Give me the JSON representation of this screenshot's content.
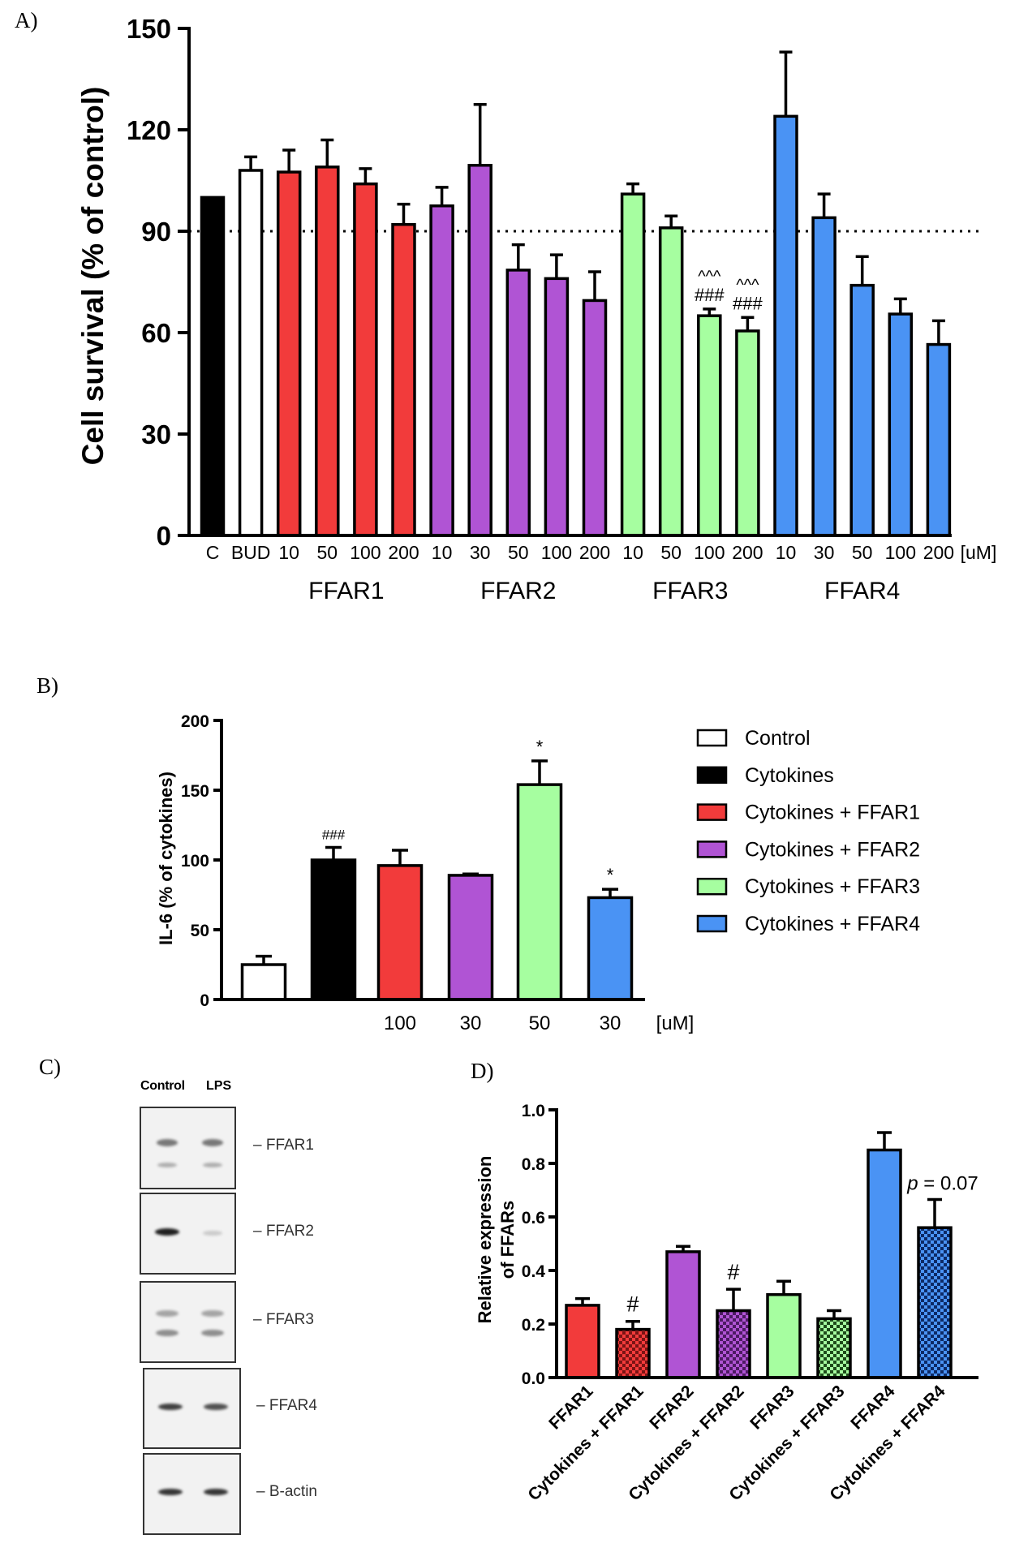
{
  "panels": {
    "a": "A)",
    "b": "B)",
    "c": "C)",
    "d": "D)"
  },
  "colors": {
    "black": "#000000",
    "white": "#ffffff",
    "red": "#f23b3b",
    "purple": "#b054d4",
    "green": "#a6fea0",
    "blue": "#4a93f4",
    "dark_red": "#7a1414",
    "dark_purple": "#4d1b63",
    "dark_green": "#1e4a1a",
    "dark_blue": "#0d2a66"
  },
  "chart_data": [
    {
      "type": "bar",
      "id": "A",
      "title": "",
      "ylabel": "Cell survival (% of control)",
      "xlabel": "",
      "ylim": [
        0,
        150
      ],
      "yticks": [
        0,
        30,
        60,
        90,
        120,
        150
      ],
      "reference_line": 90,
      "unit_label": "[uM]",
      "categories": [
        "C",
        "BUD",
        "10",
        "50",
        "100",
        "200",
        "10",
        "30",
        "50",
        "100",
        "200",
        "10",
        "50",
        "100",
        "200",
        "10",
        "30",
        "50",
        "100",
        "200"
      ],
      "values": [
        100,
        108,
        107.5,
        109,
        104,
        92,
        97.5,
        109.5,
        78.5,
        76,
        69.5,
        101,
        91,
        65,
        60.5,
        124,
        94,
        74,
        65.5,
        56.5
      ],
      "errors": [
        0,
        4,
        6.5,
        8,
        4.5,
        6,
        5.5,
        18,
        7.5,
        7,
        8.5,
        3,
        3.5,
        2,
        4,
        19,
        7,
        8.5,
        4.5,
        7
      ],
      "colors": [
        "black",
        "white",
        "red",
        "red",
        "red",
        "red",
        "purple",
        "purple",
        "purple",
        "purple",
        "purple",
        "green",
        "green",
        "green",
        "green",
        "blue",
        "blue",
        "blue",
        "blue",
        "blue"
      ],
      "groups": [
        {
          "label": "FFAR1",
          "from": 2,
          "to": 5
        },
        {
          "label": "FFAR2",
          "from": 6,
          "to": 10
        },
        {
          "label": "FFAR3",
          "from": 11,
          "to": 14
        },
        {
          "label": "FFAR4",
          "from": 15,
          "to": 19
        }
      ],
      "annotations": [
        {
          "bar": 13,
          "lines": [
            "^^^",
            "###"
          ]
        },
        {
          "bar": 14,
          "lines": [
            "^^^",
            "###"
          ]
        }
      ]
    },
    {
      "type": "bar",
      "id": "B",
      "title": "",
      "ylabel": "IL-6 (% of cytokines)",
      "xlabel": "",
      "ylim": [
        0,
        200
      ],
      "yticks": [
        0,
        50,
        100,
        150,
        200
      ],
      "unit_label": "[uM]",
      "categories": [
        "",
        "",
        "100",
        "30",
        "50",
        "30"
      ],
      "values": [
        25,
        100,
        96,
        89,
        154,
        73
      ],
      "errors": [
        6,
        9,
        11,
        1,
        17,
        6
      ],
      "colors": [
        "white",
        "black",
        "red",
        "purple",
        "green",
        "blue"
      ],
      "annotations": [
        {
          "bar": 1,
          "text": "###"
        },
        {
          "bar": 4,
          "text": "*"
        },
        {
          "bar": 5,
          "text": "*"
        }
      ],
      "legend": {
        "placement": "right",
        "entries": [
          {
            "label": "Control",
            "color": "white"
          },
          {
            "label": "Cytokines",
            "color": "black"
          },
          {
            "label": "Cytokines + FFAR1",
            "color": "red"
          },
          {
            "label": "Cytokines + FFAR2",
            "color": "purple"
          },
          {
            "label": "Cytokines + FFAR3",
            "color": "green"
          },
          {
            "label": "Cytokines + FFAR4",
            "color": "blue"
          }
        ]
      }
    },
    {
      "type": "bar",
      "id": "D",
      "title": "",
      "ylabel_lines": [
        "Relative expression",
        "of FFARs"
      ],
      "xlabel": "",
      "ylim": [
        0,
        1.0
      ],
      "yticks": [
        "0.0",
        "0.2",
        "0.4",
        "0.6",
        "0.8",
        "1.0"
      ],
      "categories": [
        "FFAR1",
        "Cytokines + FFAR1",
        "FFAR2",
        "Cytokines + FFAR2",
        "FFAR3",
        "Cytokines + FFAR3",
        "FFAR4",
        "Cytokines + FFAR4"
      ],
      "values": [
        0.27,
        0.18,
        0.47,
        0.25,
        0.31,
        0.22,
        0.85,
        0.56
      ],
      "errors": [
        0.025,
        0.03,
        0.02,
        0.08,
        0.05,
        0.03,
        0.065,
        0.105
      ],
      "colors": [
        "red",
        "dark_red",
        "purple",
        "dark_purple",
        "green",
        "dark_green",
        "blue",
        "dark_blue"
      ],
      "patterned": [
        false,
        true,
        false,
        true,
        false,
        true,
        false,
        true
      ],
      "annotations": [
        {
          "bar": 1,
          "text": "#"
        },
        {
          "bar": 3,
          "text": "#"
        },
        {
          "bar": 7,
          "text_italic": "p",
          "text": " = 0.07"
        }
      ]
    }
  ],
  "western_blot": {
    "lanes": [
      "Control",
      "LPS"
    ],
    "proteins": [
      "FFAR1",
      "FFAR2",
      "FFAR3",
      "FFAR4",
      "B-actin"
    ]
  }
}
